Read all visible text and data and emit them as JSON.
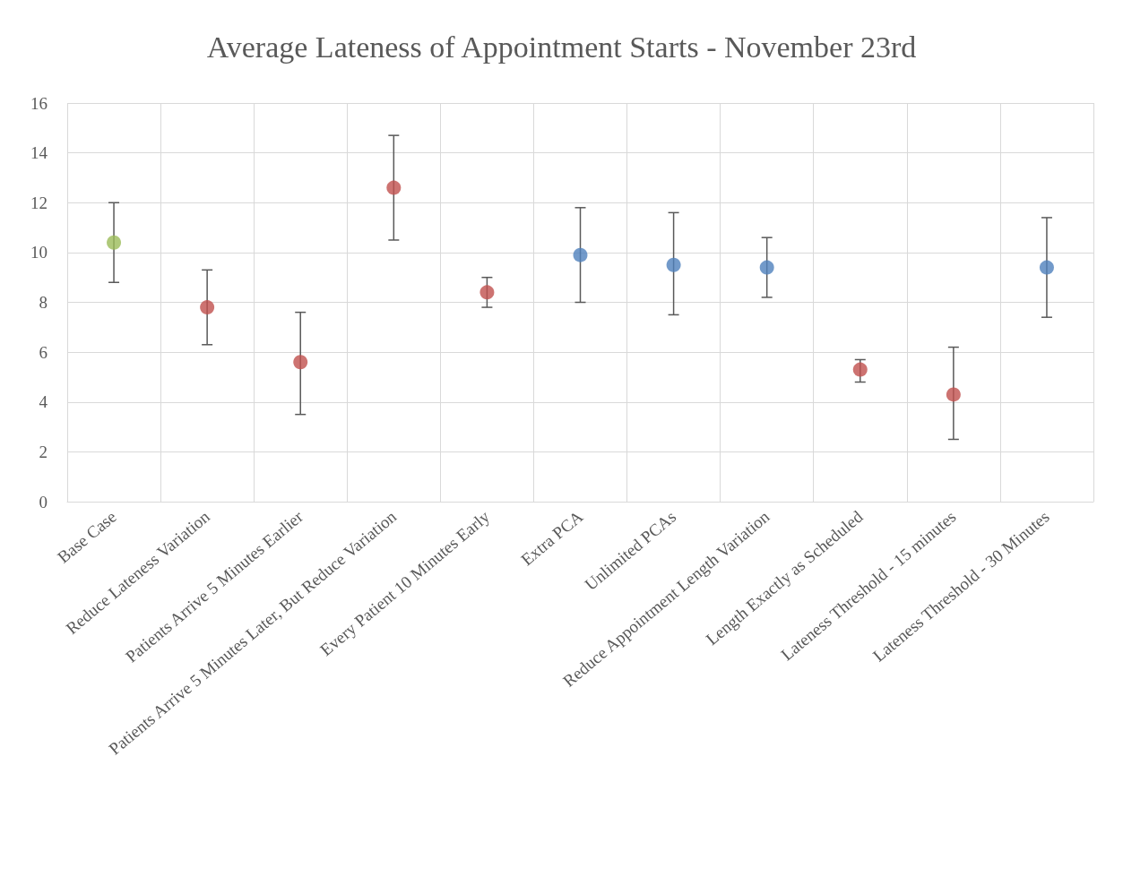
{
  "chart_data": {
    "type": "scatter",
    "title": "Average Lateness of Appointment Starts - November 23rd",
    "categories": [
      "Base Case",
      "Reduce Lateness Variation",
      "Patients Arrive 5 Minutes Earlier",
      "Patients Arrive 5 Minutes Later, But Reduce Variation",
      "Every Patient 10 Minutes Early",
      "Extra PCA",
      "Unlimited PCAs",
      "Reduce Appointment Length Variation",
      "Length Exactly as Scheduled",
      "Lateness Threshold - 15 minutes",
      "Lateness Threshold - 30 Minutes"
    ],
    "values": [
      10.4,
      7.8,
      5.6,
      12.6,
      8.4,
      9.9,
      9.5,
      9.4,
      5.3,
      4.3,
      9.4
    ],
    "errors": [
      [
        8.8,
        12.0
      ],
      [
        6.3,
        9.3
      ],
      [
        3.5,
        7.6
      ],
      [
        10.5,
        14.7
      ],
      [
        7.8,
        9.0
      ],
      [
        8.0,
        11.8
      ],
      [
        7.5,
        11.6
      ],
      [
        8.2,
        10.6
      ],
      [
        4.8,
        5.7
      ],
      [
        2.5,
        6.2
      ],
      [
        7.4,
        11.4
      ]
    ],
    "colors": [
      "#9bbb59",
      "#c0504d",
      "#c0504d",
      "#c0504d",
      "#c0504d",
      "#4f81bd",
      "#4f81bd",
      "#4f81bd",
      "#c0504d",
      "#c0504d",
      "#4f81bd"
    ],
    "ylim": [
      0,
      16
    ],
    "yticks": [
      0,
      2,
      4,
      6,
      8,
      10,
      12,
      14,
      16
    ],
    "grid": true,
    "marker": "circle"
  }
}
